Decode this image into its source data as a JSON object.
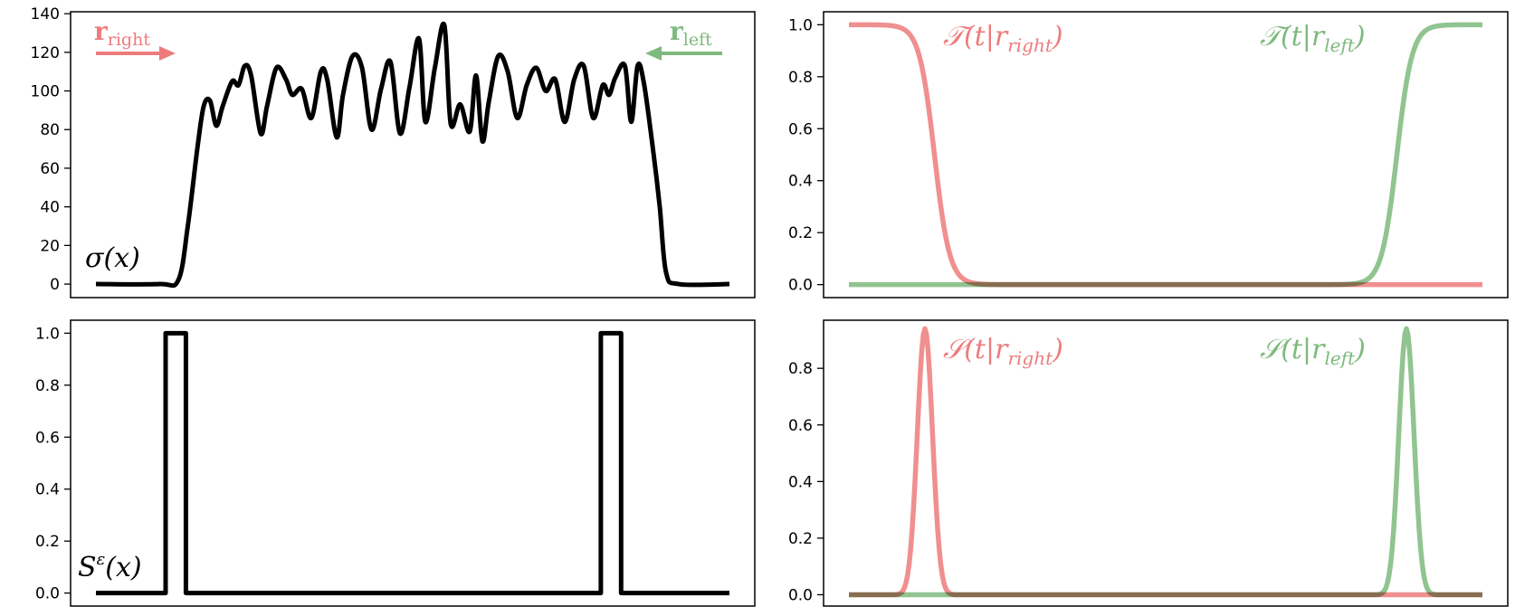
{
  "colors": {
    "red": "#ee7b7b",
    "green": "#7dba7d",
    "overlap": "#6f6f39",
    "line": "#000000"
  },
  "chart_data": [
    {
      "type": "line",
      "panel": "top-left",
      "annotation": "σ(x)",
      "arrows": [
        {
          "label_main": "r",
          "label_sub": "right",
          "direction": "right",
          "color": "red"
        },
        {
          "label_main": "r",
          "label_sub": "left",
          "direction": "left",
          "color": "green"
        }
      ],
      "ylim": [
        -7,
        141
      ],
      "yticks": [
        "0",
        "20",
        "40",
        "60",
        "80",
        "100",
        "120",
        "140"
      ],
      "ytick_values": [
        0,
        20,
        40,
        60,
        80,
        100,
        120,
        140
      ],
      "xlim": [
        -0.04,
        1.04
      ],
      "grid": false,
      "series": [
        {
          "color": "line",
          "x": [
            0,
            0.1,
            0.13,
            0.145,
            0.16,
            0.17,
            0.18,
            0.19,
            0.2,
            0.215,
            0.225,
            0.235,
            0.245,
            0.26,
            0.27,
            0.285,
            0.3,
            0.31,
            0.325,
            0.34,
            0.355,
            0.365,
            0.38,
            0.39,
            0.405,
            0.42,
            0.435,
            0.45,
            0.465,
            0.48,
            0.495,
            0.51,
            0.52,
            0.535,
            0.55,
            0.56,
            0.575,
            0.59,
            0.6,
            0.61,
            0.62,
            0.635,
            0.65,
            0.665,
            0.68,
            0.695,
            0.71,
            0.725,
            0.74,
            0.755,
            0.77,
            0.785,
            0.8,
            0.81,
            0.82,
            0.835,
            0.845,
            0.855,
            0.865,
            0.88,
            0.89,
            0.9,
            0.92,
            1.0
          ],
          "y": [
            0,
            0,
            2,
            30,
            70,
            92,
            95,
            82,
            92,
            105,
            103,
            113,
            108,
            78,
            92,
            112,
            106,
            98,
            101,
            86,
            110,
            106,
            76,
            98,
            118,
            112,
            80,
            101,
            115,
            78,
            102,
            127,
            84,
            112,
            134,
            83,
            93,
            79,
            108,
            74,
            94,
            118,
            110,
            86,
            103,
            112,
            100,
            106,
            84,
            106,
            113,
            86,
            103,
            98,
            107,
            113,
            84,
            113,
            104,
            68,
            40,
            6,
            0,
            0
          ]
        }
      ]
    },
    {
      "type": "line",
      "panel": "top-right",
      "ylim": [
        -0.05,
        1.05
      ],
      "yticks": [
        "0.0",
        "0.2",
        "0.4",
        "0.6",
        "0.8",
        "1.0"
      ],
      "ytick_values": [
        0,
        0.2,
        0.4,
        0.6,
        0.8,
        1.0
      ],
      "xlim": [
        -0.04,
        1.04
      ],
      "grid": false,
      "annotations": [
        {
          "text_main": "𝒯(t|r",
          "text_sub": "right",
          "text_end": ")",
          "color": "red"
        },
        {
          "text_main": "𝒯(t|r",
          "text_sub": "left",
          "text_end": ")",
          "color": "green"
        }
      ],
      "series": [
        {
          "color": "red",
          "function": "falling_sigmoid",
          "center": 0.135,
          "width": 0.012
        },
        {
          "color": "green",
          "function": "rising_sigmoid",
          "center": 0.865,
          "width": 0.012
        }
      ]
    },
    {
      "type": "line",
      "panel": "bottom-left",
      "annotation_main": "S",
      "annotation_sup": "ε",
      "annotation_end": "(x)",
      "ylim": [
        -0.05,
        1.05
      ],
      "yticks": [
        "0.0",
        "0.2",
        "0.4",
        "0.6",
        "0.8",
        "1.0"
      ],
      "ytick_values": [
        0,
        0.2,
        0.4,
        0.6,
        0.8,
        1.0
      ],
      "xlim": [
        -0.04,
        1.04
      ],
      "grid": false,
      "series": [
        {
          "color": "line",
          "x": [
            0,
            0.11,
            0.11,
            0.142,
            0.142,
            0.797,
            0.797,
            0.829,
            0.829,
            1.0
          ],
          "y": [
            0,
            0,
            1,
            1,
            0,
            0,
            1,
            1,
            0,
            0
          ]
        }
      ]
    },
    {
      "type": "line",
      "panel": "bottom-right",
      "ylim": [
        -0.04,
        0.97
      ],
      "yticks": [
        "0.0",
        "0.2",
        "0.4",
        "0.6",
        "0.8"
      ],
      "ytick_values": [
        0,
        0.2,
        0.4,
        0.6,
        0.8
      ],
      "xlim": [
        -0.04,
        1.04
      ],
      "grid": false,
      "annotations": [
        {
          "text_main": "𝒮(t|r",
          "text_sub": "right",
          "text_end": ")",
          "color": "red"
        },
        {
          "text_main": "𝒮(t|r",
          "text_sub": "left",
          "text_end": ")",
          "color": "green"
        }
      ],
      "series": [
        {
          "color": "red",
          "function": "bump",
          "center": 0.12,
          "width": 0.012,
          "peak": 0.94
        },
        {
          "color": "green",
          "function": "bump",
          "center": 0.88,
          "width": 0.012,
          "peak": 0.94
        }
      ]
    }
  ]
}
